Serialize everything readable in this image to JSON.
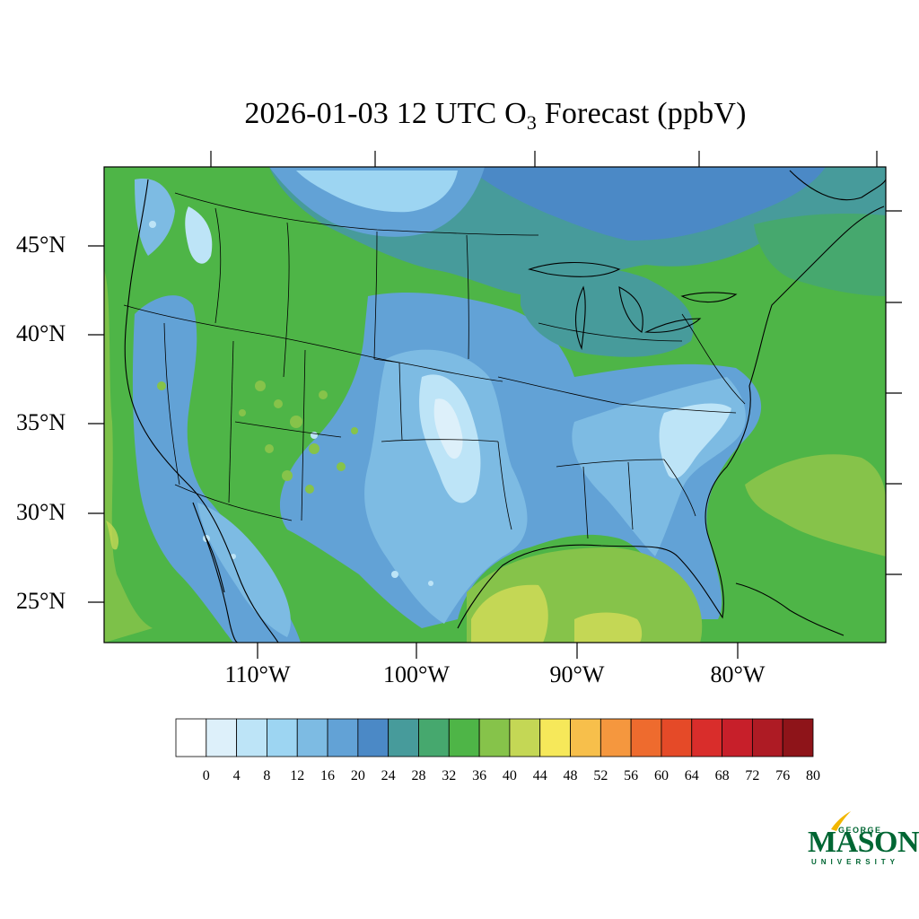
{
  "title": {
    "prefix": "2026-01-03 12 UTC O",
    "subscript": "3",
    "suffix": " Forecast (ppbV)"
  },
  "map": {
    "projection": "lambert-conformal-conus",
    "lat_labels": [
      "45°N",
      "40°N",
      "35°N",
      "30°N",
      "25°N"
    ],
    "lon_labels": [
      "110°W",
      "100°W",
      "90°W",
      "80°W"
    ],
    "variable": "O3",
    "units": "ppbV"
  },
  "colorbar": {
    "labels": [
      "0",
      "4",
      "8",
      "12",
      "16",
      "20",
      "24",
      "28",
      "32",
      "36",
      "40",
      "44",
      "48",
      "52",
      "56",
      "60",
      "64",
      "68",
      "72",
      "76",
      "80"
    ],
    "colors": [
      "#ffffff",
      "#ddf0fa",
      "#bde4f7",
      "#9dd5f2",
      "#7dbbe3",
      "#62a2d6",
      "#4b89c6",
      "#479b9b",
      "#46a86e",
      "#4eb547",
      "#86c34a",
      "#c4d755",
      "#f6e85a",
      "#f7bf4b",
      "#f5973e",
      "#ee6b2e",
      "#e54a28",
      "#d92d2b",
      "#c71f2a",
      "#ae1b24",
      "#8e1419"
    ]
  },
  "logo": {
    "line1": "GEORGE",
    "line2": "MASON",
    "line3": "UNIVERSITY"
  }
}
